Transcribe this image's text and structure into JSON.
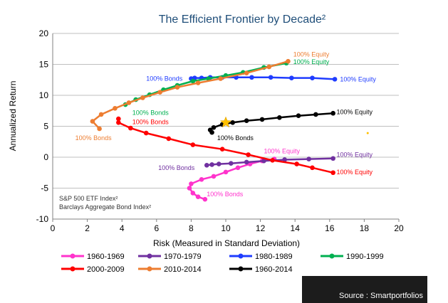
{
  "chart_data": {
    "type": "line",
    "title": "The Efficient Frontier by Decade²",
    "xlabel": "Risk (Measured in Standard Deviation)",
    "ylabel": "Annualized Return",
    "xlim": [
      0,
      20
    ],
    "ylim": [
      -10,
      20
    ],
    "x_ticks": [
      "0",
      "2",
      "4",
      "6",
      "8",
      "10",
      "12",
      "14",
      "16",
      "18",
      "20"
    ],
    "y_ticks": [
      "-10",
      "-5",
      "0",
      "5",
      "10",
      "15",
      "20"
    ],
    "grid": "horizontal",
    "legend_position": "bottom",
    "series": [
      {
        "name": "1960-1969",
        "color": "#ff33cc",
        "points": [
          [
            8.8,
            -6.8
          ],
          [
            8.4,
            -6.4
          ],
          [
            8.1,
            -5.8
          ],
          [
            7.9,
            -5.0
          ],
          [
            8.0,
            -4.3
          ],
          [
            8.6,
            -3.6
          ],
          [
            9.3,
            -3.1
          ],
          [
            10.0,
            -2.4
          ],
          [
            10.7,
            -1.7
          ],
          [
            11.4,
            -1.1
          ],
          [
            12.1,
            -0.6
          ],
          [
            12.8,
            -0.3
          ]
        ]
      },
      {
        "name": "1970-1979",
        "color": "#7030a0",
        "points": [
          [
            8.9,
            -1.3
          ],
          [
            9.2,
            -1.2
          ],
          [
            9.6,
            -1.1
          ],
          [
            10.3,
            -1.0
          ],
          [
            11.2,
            -0.8
          ],
          [
            12.2,
            -0.6
          ],
          [
            13.4,
            -0.4
          ],
          [
            14.8,
            -0.3
          ],
          [
            16.2,
            -0.2
          ]
        ]
      },
      {
        "name": "1980-1989",
        "color": "#1f3cff",
        "points": [
          [
            8.0,
            12.7
          ],
          [
            8.2,
            12.8
          ],
          [
            8.6,
            12.8
          ],
          [
            9.1,
            12.9
          ],
          [
            9.8,
            12.9
          ],
          [
            10.6,
            12.9
          ],
          [
            11.5,
            12.9
          ],
          [
            12.6,
            12.9
          ],
          [
            13.8,
            12.8
          ],
          [
            15.0,
            12.8
          ],
          [
            16.3,
            12.6
          ]
        ]
      },
      {
        "name": "1990-1999",
        "color": "#00b050",
        "points": [
          [
            4.2,
            8.5
          ],
          [
            4.8,
            9.3
          ],
          [
            5.6,
            10.1
          ],
          [
            6.4,
            10.9
          ],
          [
            7.2,
            11.6
          ],
          [
            8.1,
            12.3
          ],
          [
            9.0,
            12.7
          ],
          [
            10.0,
            13.2
          ],
          [
            11.0,
            13.7
          ],
          [
            12.2,
            14.5
          ],
          [
            13.5,
            15.2
          ]
        ]
      },
      {
        "name": "2000-2009",
        "color": "#ff0000",
        "points": [
          [
            3.8,
            6.2
          ],
          [
            3.8,
            5.6
          ],
          [
            4.5,
            4.7
          ],
          [
            5.4,
            3.9
          ],
          [
            6.7,
            3.0
          ],
          [
            8.1,
            2.0
          ],
          [
            9.8,
            1.3
          ],
          [
            11.3,
            0.4
          ],
          [
            12.7,
            -0.5
          ],
          [
            14.1,
            -1.1
          ],
          [
            15.0,
            -1.7
          ],
          [
            16.2,
            -2.5
          ]
        ]
      },
      {
        "name": "2010-2014",
        "color": "#ed7d31",
        "points": [
          [
            2.7,
            4.6
          ],
          [
            2.3,
            5.8
          ],
          [
            2.8,
            6.9
          ],
          [
            3.6,
            7.9
          ],
          [
            4.4,
            8.8
          ],
          [
            5.2,
            9.6
          ],
          [
            6.2,
            10.5
          ],
          [
            7.2,
            11.3
          ],
          [
            8.4,
            12.0
          ],
          [
            9.7,
            12.7
          ],
          [
            11.2,
            13.6
          ],
          [
            12.5,
            14.6
          ],
          [
            13.6,
            15.5
          ]
        ]
      },
      {
        "name": "1960-2014",
        "color": "#000000",
        "points": [
          [
            9.2,
            4.0
          ],
          [
            9.1,
            4.4
          ],
          [
            9.3,
            4.8
          ],
          [
            9.8,
            5.3
          ],
          [
            10.4,
            5.6
          ],
          [
            11.2,
            5.9
          ],
          [
            12.1,
            6.1
          ],
          [
            13.1,
            6.4
          ],
          [
            14.2,
            6.7
          ],
          [
            15.2,
            6.9
          ],
          [
            16.2,
            7.1
          ]
        ]
      }
    ],
    "annotations": [
      {
        "text": "100% Equity",
        "x": 13.9,
        "y": 16.6,
        "color": "#ed7d31"
      },
      {
        "text": "100% Equity",
        "x": 13.9,
        "y": 15.4,
        "color": "#00b050"
      },
      {
        "text": "100% Bonds",
        "x": 5.4,
        "y": 12.7,
        "color": "#1f3cff"
      },
      {
        "text": "100% Equity",
        "x": 16.6,
        "y": 12.6,
        "color": "#1f3cff"
      },
      {
        "text": "100% Bonds",
        "x": 4.6,
        "y": 7.2,
        "color": "#00b050"
      },
      {
        "text": "100% Bonds",
        "x": 4.6,
        "y": 5.7,
        "color": "#ff0000"
      },
      {
        "text": "100% Equity",
        "x": 16.4,
        "y": 7.3,
        "color": "#000000"
      },
      {
        "text": "100% Bonds",
        "x": 1.3,
        "y": 3.1,
        "color": "#ed7d31"
      },
      {
        "text": "100% Bonds",
        "x": 9.5,
        "y": 3.1,
        "color": "#000000"
      },
      {
        "text": "100% Equity",
        "x": 12.2,
        "y": 1.0,
        "color": "#ff33cc"
      },
      {
        "text": "100% Equity",
        "x": 16.4,
        "y": 0.4,
        "color": "#7030a0"
      },
      {
        "text": "100% Bonds",
        "x": 6.1,
        "y": -1.7,
        "color": "#7030a0"
      },
      {
        "text": "100% Equity",
        "x": 16.4,
        "y": -2.4,
        "color": "#ff0000"
      },
      {
        "text": "100% Bonds",
        "x": 8.9,
        "y": -6.0,
        "color": "#ff33cc"
      }
    ],
    "star": {
      "x": 10.0,
      "y": 5.6,
      "color": "#ffc000"
    },
    "small_marker": {
      "x": 18.2,
      "y": 3.9,
      "color": "#ffc000"
    },
    "notes": [
      "S&P 500 ETF Index²",
      "Barclays Aggregate Bond Index²"
    ]
  },
  "source": "Source : Smartportfolios"
}
